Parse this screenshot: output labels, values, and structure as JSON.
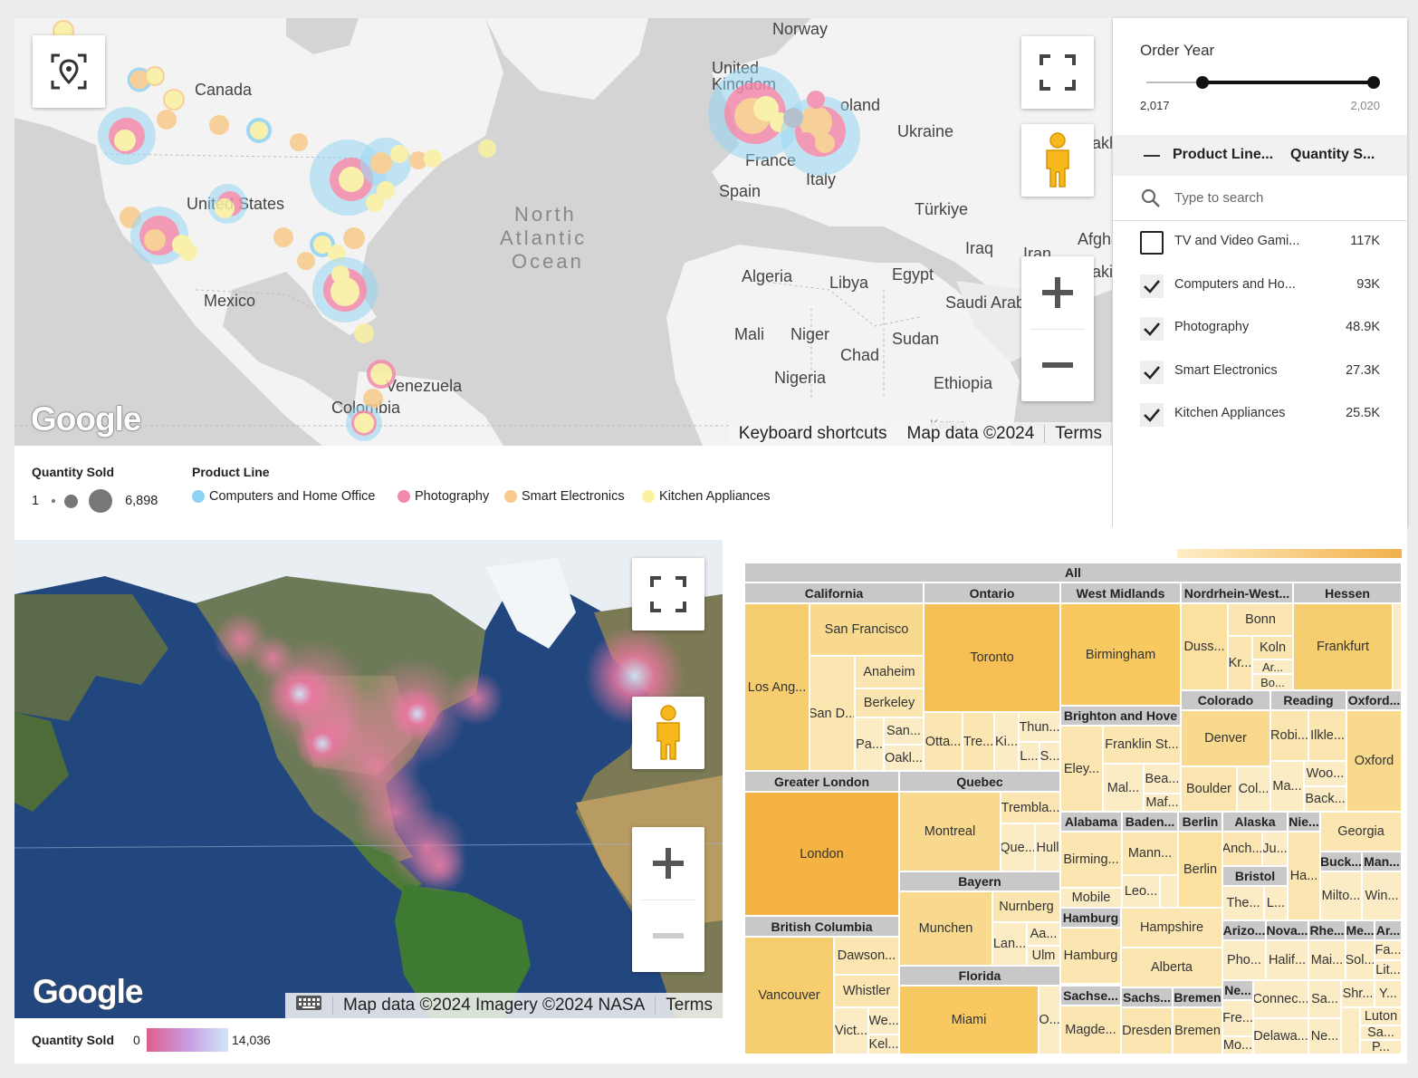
{
  "top_map": {
    "labels": {
      "norway": "Norway",
      "canada": "Canada",
      "united_kingdom": "United Kingdom",
      "poland": "oland",
      "ukraine": "Ukraine",
      "france": "France",
      "spain": "Spain",
      "italy": "Italy",
      "turkiye": "Türkiye",
      "united_states": "United States",
      "ocean_1": "North",
      "ocean_2": "Atlantic",
      "ocean_3": "Ocean",
      "iraq": "Iraq",
      "iran": "Iran",
      "afghan": "Afghan",
      "algeria": "Algeria",
      "libya": "Libya",
      "egypt": "Egypt",
      "saudi": "Saudi Arab",
      "mexico": "Mexico",
      "mali": "Mali",
      "niger": "Niger",
      "chad": "Chad",
      "sudan": "Sudan",
      "nigeria": "Nigeria",
      "ethiopia": "Ethiopia",
      "venezuela": "Venezuela",
      "colombia": "Colombia",
      "kenya": "Kenya",
      "pakistan": "aki",
      "kaz": "akh"
    },
    "logo": "Google",
    "attribution": {
      "shortcuts": "Keyboard shortcuts",
      "mapdata": "Map data ©2024",
      "terms": "Terms"
    }
  },
  "filter": {
    "title": "Order Year",
    "year_min": "2,017",
    "year_max": "2,020",
    "header_col1": "Product Line...",
    "header_col2": "Quantity S...",
    "search_placeholder": "Type to search",
    "rows": [
      {
        "label": "TV and Video Gami...",
        "value": "117K",
        "checked": false
      },
      {
        "label": "Computers and Ho...",
        "value": "93K",
        "checked": true
      },
      {
        "label": "Photography",
        "value": "48.9K",
        "checked": true
      },
      {
        "label": "Smart Electronics",
        "value": "27.3K",
        "checked": true
      },
      {
        "label": "Kitchen Appliances",
        "value": "25.5K",
        "checked": true
      }
    ]
  },
  "legend": {
    "qty_title": "Quantity Sold",
    "qty_min": "1",
    "qty_max": "6,898",
    "pl_title": "Product Line",
    "items": [
      {
        "label": "Computers and Home Office",
        "color": "#8fd3f4"
      },
      {
        "label": "Photography",
        "color": "#f28bab"
      },
      {
        "label": "Smart Electronics",
        "color": "#f7c98a"
      },
      {
        "label": "Kitchen Appliances",
        "color": "#fbf0a0"
      }
    ]
  },
  "sat_map": {
    "logo": "Google",
    "attribution": {
      "mapdata": "Map data ©2024 Imagery ©2024 NASA",
      "terms": "Terms"
    }
  },
  "heat_legend": {
    "title": "Quantity Sold",
    "min": "0",
    "max": "14,036"
  },
  "treemap": {
    "root": "All",
    "headers": {
      "california": "California",
      "ontario": "Ontario",
      "westmid": "West Midlands",
      "nrw": "Nordrhein-West...",
      "hessen": "Hessen",
      "colorado": "Colorado",
      "reading": "Reading",
      "oxford": "Oxford...",
      "brighton": "Brighton and Hove",
      "greaterlondon": "Greater London",
      "quebec": "Quebec",
      "alabama": "Alabama",
      "baden": "Baden...",
      "berlin": "Berlin",
      "alaska": "Alaska",
      "nie": "Nie...",
      "bayern": "Bayern",
      "bristol": "Bristol",
      "buck": "Buck...",
      "man": "Man...",
      "bc": "British Columbia",
      "hamburg": "Hamburg",
      "arizo": "Arizo...",
      "nova": "Nova...",
      "rhe": "Rhe...",
      "me": "Me...",
      "ar": "Ar...",
      "florida": "Florida",
      "sachse1": "Sachse...",
      "sachs2": "Sachs...",
      "bremen": "Bremen",
      "ne": "Ne..."
    },
    "cells": {
      "losang": "Los Ang...",
      "sanfran": "San Francisco",
      "anaheim": "Anaheim",
      "sand": "San D...",
      "berkeley": "Berkeley",
      "pa": "Pa...",
      "san2": "San...",
      "oakl": "Oakl...",
      "toronto": "Toronto",
      "otta": "Otta...",
      "tre": "Tre...",
      "ki": "Ki...",
      "thun": "Thun...",
      "l1": "L...",
      "s1": "S...",
      "birmingham": "Birmingham",
      "bonn": "Bonn",
      "duss": "Duss...",
      "koln": "Koln",
      "kr": "Kr...",
      "ar2": "Ar...",
      "bo": "Bo...",
      "frankfurt": "Frankfurt",
      "denver": "Denver",
      "robi": "Robi...",
      "ilkle": "Ilkle...",
      "oxford": "Oxford",
      "boulder": "Boulder",
      "col": "Col...",
      "ma": "Ma...",
      "woo": "Woo...",
      "back": "Back...",
      "franklin": "Franklin St...",
      "eley": "Eley...",
      "mal": "Mal...",
      "bea": "Bea...",
      "maf": "Maf...",
      "london": "London",
      "montreal": "Montreal",
      "trembla": "Trembla...",
      "que": "Que...",
      "hull": "Hull",
      "birming2": "Birming...",
      "mann": "Mann...",
      "berlin2": "Berlin",
      "anch": "Anch...",
      "ju": "Ju...",
      "ha": "Ha...",
      "georgia": "Georgia",
      "mobile": "Mobile",
      "leo": "Leo...",
      "the": "The...",
      "l2": "L...",
      "milto": "Milto...",
      "win": "Win...",
      "munchen": "Munchen",
      "nurnberg": "Nurnberg",
      "lan": "Lan...",
      "aa": "Aa...",
      "ulm": "Ulm",
      "hampshire": "Hampshire",
      "hamburg2": "Hamburg",
      "alberta": "Alberta",
      "pho": "Pho...",
      "halif": "Halif...",
      "mai": "Mai...",
      "sol": "Sol...",
      "fa": "Fa...",
      "lit": "Lit...",
      "vancouver": "Vancouver",
      "dawson": "Dawson...",
      "whistler": "Whistler",
      "vict": "Vict...",
      "we": "We...",
      "kel": "Kel...",
      "miami": "Miami",
      "o1": "O...",
      "connec": "Connec...",
      "sa1": "Sa...",
      "shr": "Shr...",
      "y1": "Y...",
      "magde": "Magde...",
      "dresden": "Dresden",
      "bremen2": "Bremen",
      "fre": "Fre...",
      "delawa": "Delawa...",
      "ne2": "Ne...",
      "luton": "Luton",
      "sa2": "Sa...",
      "p1": "P...",
      "mo": "Mo..."
    }
  }
}
